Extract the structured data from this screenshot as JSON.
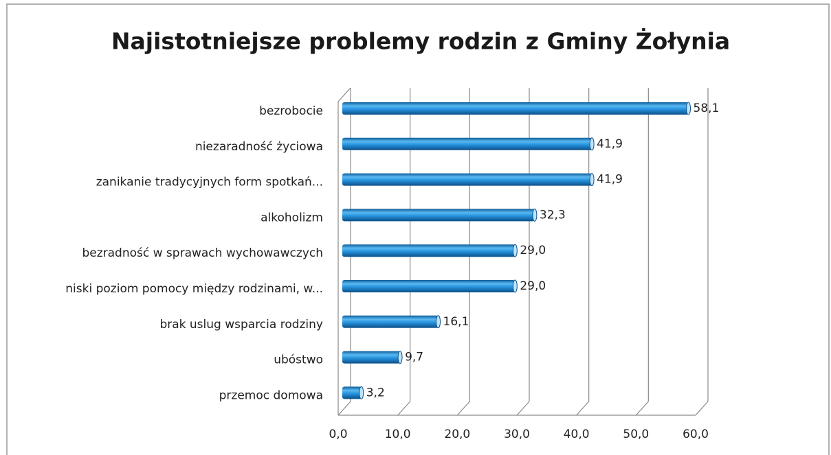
{
  "chart_data": {
    "type": "bar",
    "orientation": "horizontal",
    "title": "Najistotniejsze problemy rodzin z Gminy Żołynia",
    "categories": [
      "bezrobocie",
      "niezaradność życiowa",
      "zanikanie tradycyjnych form spotkań...",
      "alkoholizm",
      "bezradność w sprawach wychowawczych",
      "niski poziom pomocy między rodzinami, w...",
      "brak uslug wsparcia rodziny",
      "ubóstwo",
      "przemoc domowa"
    ],
    "values": [
      58.1,
      41.9,
      41.9,
      32.3,
      29.0,
      29.0,
      16.1,
      9.7,
      3.2
    ],
    "value_labels": [
      "58,1",
      "41,9",
      "41,9",
      "32,3",
      "29,0",
      "29,0",
      "16,1",
      "9,7",
      "3,2"
    ],
    "color": "#1f8fd8",
    "xlim": [
      0,
      60
    ],
    "xticks": [
      {
        "value": 0,
        "label": "0,0"
      },
      {
        "value": 10,
        "label": "10,0"
      },
      {
        "value": 20,
        "label": "20,0"
      },
      {
        "value": 30,
        "label": "30,0"
      },
      {
        "value": 40,
        "label": "40,0"
      },
      {
        "value": 50,
        "label": "50,0"
      },
      {
        "value": 60,
        "label": "60,0"
      }
    ],
    "grid": true
  }
}
